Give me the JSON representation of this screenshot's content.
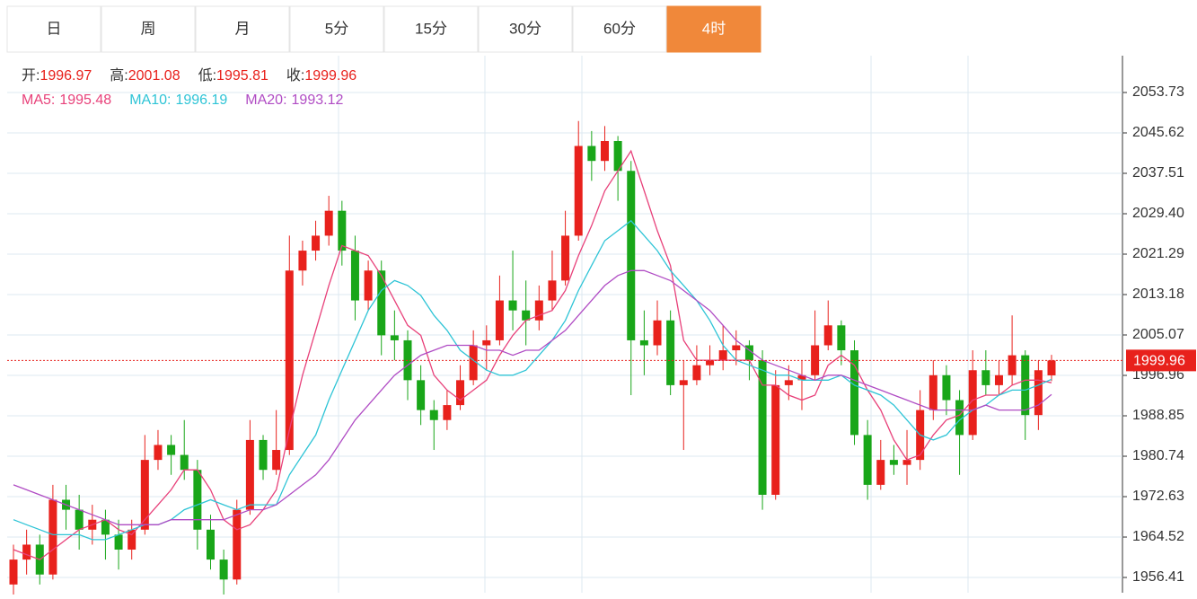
{
  "tabs": [
    "日",
    "周",
    "月",
    "5分",
    "15分",
    "30分",
    "60分",
    "4时"
  ],
  "active_tab": 7,
  "chart_data": {
    "type": "candlestick",
    "ohlc_labels": [
      "开:",
      "高:",
      "低:",
      "收:"
    ],
    "up_color": "#e8211c",
    "down_color": "#19a619",
    "ylim": [
      1953.35,
      2061.12
    ],
    "yticks": [
      2053.73,
      2045.62,
      2037.51,
      {
        "value": 2029.4,
        "label": "2029.40"
      },
      2021.29,
      2013.18,
      2005.07,
      1996.96,
      1988.85,
      1980.74,
      1972.63,
      1964.52,
      1956.41
    ],
    "grid": true,
    "candles": [
      [
        1955,
        1963,
        1953,
        1960
      ],
      [
        1960,
        1966,
        1957,
        1963
      ],
      [
        1963,
        1965,
        1955,
        1957
      ],
      [
        1957,
        1975,
        1956,
        1972
      ],
      [
        1972,
        1975,
        1966,
        1970
      ],
      [
        1970,
        1973,
        1962,
        1966
      ],
      [
        1966,
        1971,
        1963,
        1968
      ],
      [
        1968,
        1970,
        1960,
        1965
      ],
      [
        1965,
        1968,
        1958,
        1962
      ],
      [
        1962,
        1968,
        1960,
        1966
      ],
      [
        1966,
        1985,
        1965,
        1980
      ],
      [
        1980,
        1986,
        1978,
        1983
      ],
      [
        1983,
        1985,
        1977,
        1981
      ],
      [
        1981,
        1988,
        1976,
        1978
      ],
      [
        1978,
        1980,
        1962,
        1966
      ],
      [
        1966,
        1969,
        1958,
        1960
      ],
      [
        1960,
        1962,
        1952,
        1956
      ],
      [
        1956,
        1972,
        1955,
        1970
      ],
      [
        1970,
        1988,
        1969,
        1984
      ],
      [
        1984,
        1985,
        1976,
        1978
      ],
      [
        1978,
        1990,
        1977,
        1982
      ],
      [
        1982,
        2025,
        1981,
        2018
      ],
      [
        2018,
        2024,
        2015,
        2022
      ],
      [
        2022,
        2028,
        2020,
        2025
      ],
      [
        2025,
        2033,
        2023,
        2030
      ],
      [
        2030,
        2032,
        2019,
        2022
      ],
      [
        2022,
        2025,
        2008,
        2012
      ],
      [
        2012,
        2020,
        2010,
        2018
      ],
      [
        2018,
        2020,
        2001,
        2005
      ],
      [
        2005,
        2010,
        2000,
        2004
      ],
      [
        2004,
        2006,
        1992,
        1996
      ],
      [
        1996,
        1999,
        1987,
        1990
      ],
      [
        1990,
        1992,
        1982,
        1988
      ],
      [
        1988,
        1994,
        1986,
        1991
      ],
      [
        1991,
        1999,
        1990,
        1996
      ],
      [
        1996,
        2006,
        1995,
        2003
      ],
      [
        2003,
        2007,
        1998,
        2004
      ],
      [
        2004,
        2017,
        2003,
        2012
      ],
      [
        2012,
        2022,
        2006,
        2010
      ],
      [
        2010,
        2016,
        2003,
        2008
      ],
      [
        2008,
        2015,
        2006,
        2012
      ],
      [
        2012,
        2022,
        2010,
        2016
      ],
      [
        2016,
        2030,
        2015,
        2025
      ],
      [
        2025,
        2048,
        2024,
        2043
      ],
      [
        2043,
        2046,
        2036,
        2040
      ],
      [
        2040,
        2047,
        2038,
        2044
      ],
      [
        2044,
        2045,
        2032,
        2038
      ],
      [
        2038,
        2040,
        1993,
        2004
      ],
      [
        2004,
        2010,
        1997,
        2003
      ],
      [
        2003,
        2012,
        2001,
        2008
      ],
      [
        2008,
        2010,
        1993,
        1995
      ],
      [
        1995,
        2000,
        1982,
        1996
      ],
      [
        1996,
        2003,
        1995,
        1999
      ],
      [
        1999,
        2003,
        1997,
        2000
      ],
      [
        2000,
        2007,
        1998,
        2002
      ],
      [
        2002,
        2006,
        1999,
        2003
      ],
      [
        2003,
        2004,
        1996,
        2000
      ],
      [
        2000,
        2002,
        1970,
        1973
      ],
      [
        1973,
        1998,
        1972,
        1995
      ],
      [
        1995,
        1999,
        1992,
        1996
      ],
      [
        1996,
        2000,
        1990,
        1997
      ],
      [
        1997,
        2010,
        1996,
        2003
      ],
      [
        2003,
        2012,
        2002,
        2007
      ],
      [
        2007,
        2008,
        1999,
        2002
      ],
      [
        2002,
        2004,
        1983,
        1985
      ],
      [
        1985,
        1988,
        1972,
        1975
      ],
      [
        1975,
        1984,
        1974,
        1980
      ],
      [
        1980,
        1983,
        1977,
        1979
      ],
      [
        1979,
        1986,
        1975,
        1980
      ],
      [
        1980,
        1994,
        1978,
        1990
      ],
      [
        1990,
        2000,
        1988,
        1997
      ],
      [
        1997,
        1999,
        1989,
        1992
      ],
      [
        1992,
        1994,
        1977,
        1985
      ],
      [
        1985,
        2002,
        1984,
        1998
      ],
      [
        1998,
        2002,
        1993,
        1995
      ],
      [
        1995,
        2000,
        1993,
        1997
      ],
      [
        1997,
        2009,
        1995,
        2001
      ],
      [
        2001,
        2002,
        1984,
        1989
      ],
      [
        1989,
        2000,
        1986,
        1998
      ],
      [
        1996.97,
        2001.08,
        1995.81,
        1999.96
      ]
    ],
    "series": [
      {
        "name": "MA5:",
        "color": "#e8417a",
        "values": [
          1962,
          1961,
          1960,
          1962,
          1964,
          1966,
          1967,
          1968,
          1966,
          1965,
          1968,
          1971,
          1974,
          1978,
          1978,
          1974,
          1968,
          1966,
          1967,
          1970,
          1974,
          1986,
          1997,
          2006,
          2015,
          2023,
          2022,
          2021,
          2017,
          2012,
          2007,
          2005,
          1997,
          1994,
          1992,
          1994,
          1996,
          2001,
          2005,
          2008,
          2009,
          2010,
          2014,
          2021,
          2027,
          2034,
          2038,
          2042,
          2034,
          2026,
          2019,
          2004,
          2000,
          2000,
          2000,
          2000,
          2000,
          1995,
          1995,
          1993,
          1992,
          1993,
          1999,
          2001,
          1999,
          1994,
          1990,
          1984,
          1980,
          1981,
          1985,
          1988,
          1989,
          1992,
          1993,
          1993,
          1995,
          1996,
          1996,
          1995.48
        ]
      },
      {
        "name": "MA10:",
        "color": "#2ec4d6",
        "values": [
          1968,
          1967,
          1966,
          1965,
          1965,
          1965,
          1964,
          1964,
          1965,
          1966,
          1967,
          1967,
          1968,
          1970,
          1971,
          1972,
          1971,
          1970,
          1971,
          1971,
          1971,
          1977,
          1981,
          1985,
          1992,
          1998,
          2004,
          2010,
          2014,
          2016,
          2015,
          2013,
          2009,
          2006,
          2002,
          2000,
          1998,
          1997,
          1997,
          1998,
          2001,
          2004,
          2008,
          2014,
          2019,
          2024,
          2026,
          2028,
          2025,
          2022,
          2018,
          2015,
          2012,
          2008,
          2003,
          2000,
          1999,
          1998,
          1997,
          1997,
          1996,
          1996,
          1996,
          1997,
          1995,
          1994,
          1993,
          1991,
          1988,
          1985,
          1984,
          1985,
          1988,
          1990,
          1991,
          1993,
          1994,
          1994,
          1995,
          1996.19
        ]
      },
      {
        "name": "MA20:",
        "color": "#b04cc4",
        "values": [
          1975,
          1974,
          1973,
          1972,
          1971,
          1970,
          1969,
          1968,
          1967,
          1967,
          1967,
          1967,
          1968,
          1968,
          1968,
          1968,
          1968,
          1969,
          1970,
          1970,
          1971,
          1973,
          1975,
          1977,
          1980,
          1984,
          1988,
          1991,
          1994,
          1997,
          1999,
          2001,
          2002,
          2003,
          2003,
          2003,
          2002,
          2002,
          2001,
          2002,
          2002,
          2004,
          2006,
          2009,
          2012,
          2015,
          2017,
          2018,
          2018,
          2017,
          2016,
          2014,
          2012,
          2010,
          2007,
          2004,
          2002,
          2000,
          1999,
          1998,
          1997,
          1996,
          1997,
          1997,
          1996,
          1995,
          1994,
          1993,
          1992,
          1991,
          1990,
          1990,
          1990,
          1990,
          1991,
          1990,
          1990,
          1990,
          1991,
          1993.12
        ]
      }
    ]
  }
}
